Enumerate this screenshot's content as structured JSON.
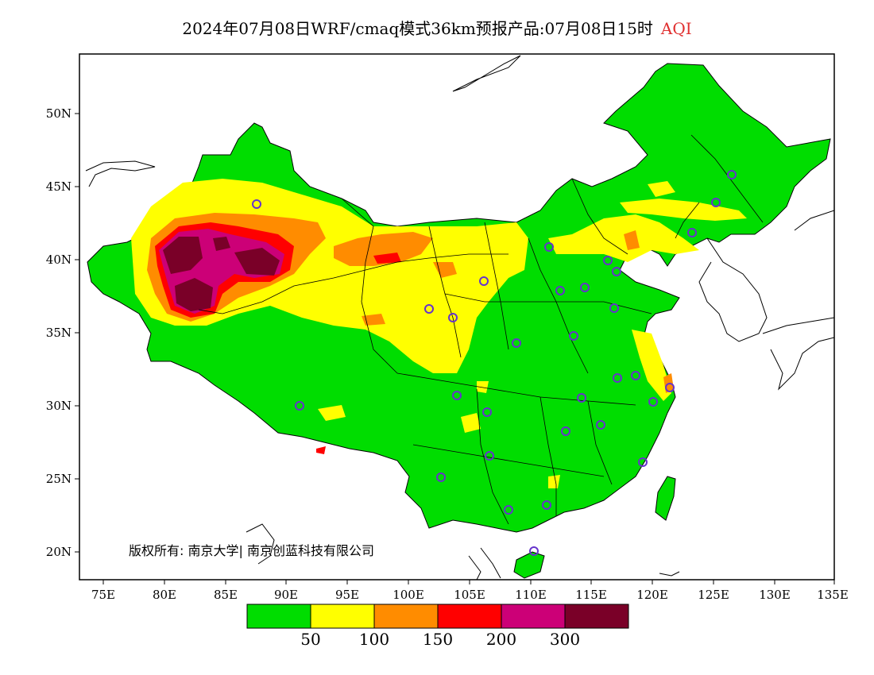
{
  "title": {
    "text": "2024年07月08日WRF/cmaq模式36km预报产品:07月08日15时",
    "variable": "AQI",
    "variable_color": "#e03030"
  },
  "axes": {
    "lon_labels": [
      "75E",
      "80E",
      "85E",
      "90E",
      "95E",
      "100E",
      "105E",
      "110E",
      "115E",
      "120E",
      "125E",
      "130E",
      "135E"
    ],
    "lat_labels": [
      "20N",
      "25N",
      "30N",
      "35N",
      "40N",
      "45N",
      "50N"
    ]
  },
  "colorbar": {
    "colors": [
      "#00dd00",
      "#ffff00",
      "#ff8c00",
      "#ff0000",
      "#cc0077",
      "#7a0028"
    ],
    "labels": [
      "50",
      "100",
      "150",
      "200",
      "300"
    ]
  },
  "copyright": "版权所有: 南京大学| 南京创蓝科技有限公司",
  "palette": {
    "good": "#00dd00",
    "moderate": "#ffff00",
    "usg": "#ff8c00",
    "unhealthy": "#ff0000",
    "very_unhealthy": "#cc0077",
    "hazardous": "#7a0028",
    "station_marker": "#6633cc"
  }
}
